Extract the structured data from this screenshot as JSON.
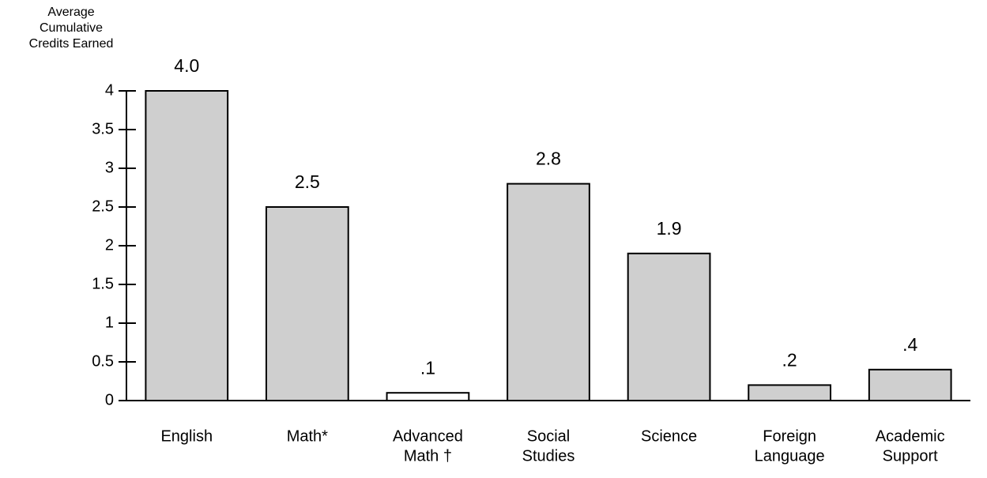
{
  "chart_data": {
    "type": "bar",
    "y_label": [
      "Average",
      "Cumulative",
      "Credits Earned"
    ],
    "categories": [
      [
        "English"
      ],
      [
        "Math*"
      ],
      [
        "Advanced",
        "Math †"
      ],
      [
        "Social",
        "Studies"
      ],
      [
        "Science"
      ],
      [
        "Foreign",
        "Language"
      ],
      [
        "Academic",
        "Support"
      ]
    ],
    "values": [
      4.0,
      2.5,
      0.1,
      2.8,
      1.9,
      0.2,
      0.4
    ],
    "value_labels": [
      "4.0",
      "2.5",
      ".1",
      "2.8",
      "1.9",
      ".2",
      ".4"
    ],
    "colors": [
      "#cfcfcf",
      "#cfcfcf",
      "#ffffff",
      "#cfcfcf",
      "#cfcfcf",
      "#cfcfcf",
      "#cfcfcf"
    ],
    "ylim": [
      0,
      4
    ],
    "yticks": [
      0,
      0.5,
      1,
      1.5,
      2,
      2.5,
      3,
      3.5,
      4
    ],
    "grid": false
  }
}
